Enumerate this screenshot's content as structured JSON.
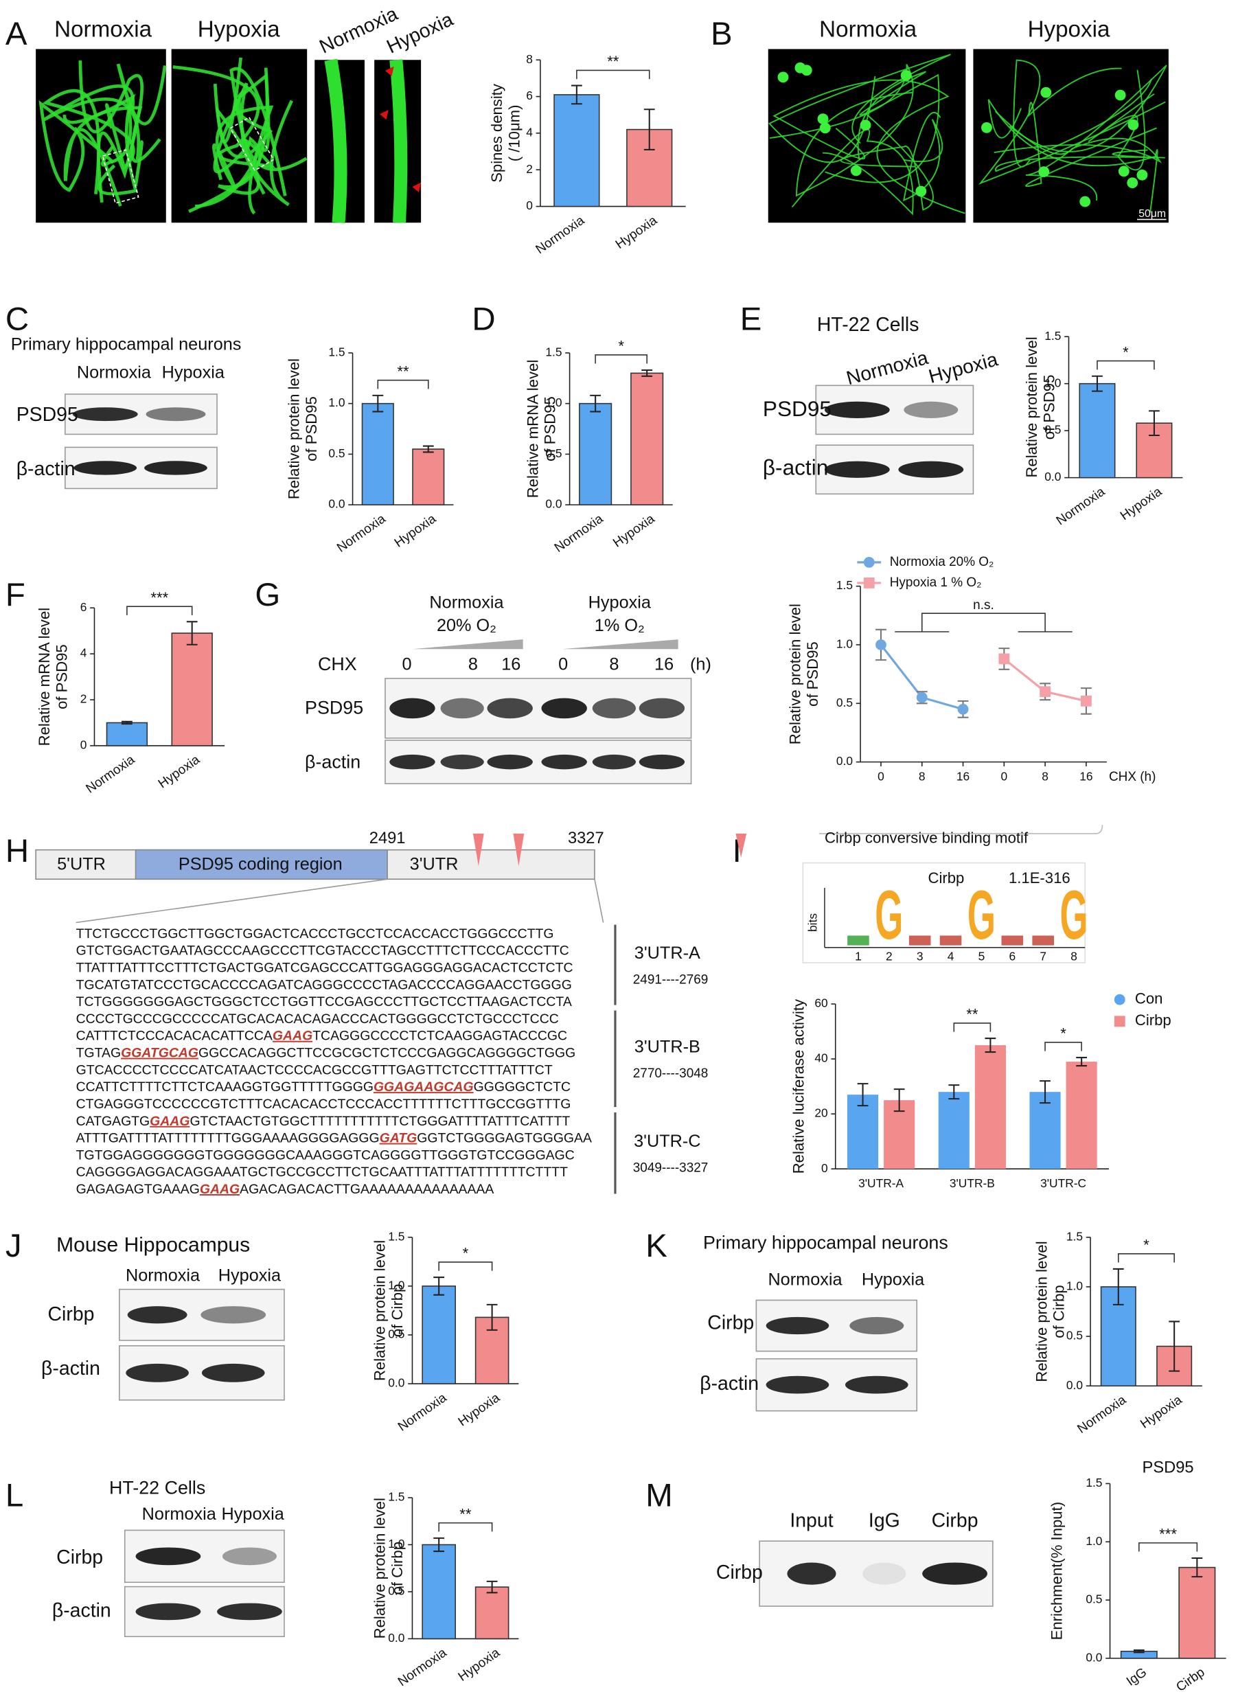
{
  "panel_letters": [
    "A",
    "B",
    "C",
    "D",
    "E",
    "F",
    "G",
    "H",
    "I",
    "J",
    "K",
    "L",
    "M"
  ],
  "figure": {
    "A": {
      "image_labels": [
        "Normoxia",
        "Hypoxia"
      ],
      "zoom_labels": [
        "Normoxia",
        "Hypoxia"
      ]
    },
    "B": {
      "image_labels": [
        "Normoxia",
        "Hypoxia"
      ],
      "scale_bar": "50μm"
    },
    "C": {
      "heading": "Primary hippocampal neurons",
      "lanes": [
        "Normoxia",
        "Hypoxia"
      ],
      "rows": [
        "PSD95",
        "β-actin"
      ]
    },
    "E": {
      "heading": "HT-22 Cells",
      "lanes": [
        "Normoxia",
        "Hypoxia"
      ],
      "rows": [
        "PSD95",
        "β-actin"
      ]
    },
    "G": {
      "conditions": [
        "Normoxia",
        "Hypoxia"
      ],
      "oxygen": [
        "20% O₂",
        "1% O₂"
      ],
      "treatment": "CHX",
      "times": [
        "0",
        "8",
        "16",
        "0",
        "8",
        "16"
      ],
      "unit": "(h)",
      "rows": [
        "PSD95",
        "β-actin"
      ]
    },
    "H": {
      "regions": [
        "5'UTR",
        "PSD95 coding region",
        "3'UTR"
      ],
      "positions": [
        "2491",
        "3327"
      ],
      "sequence": [
        [
          "TTCTGCCCTGGCTTGGCTGGACTCACCCTGCCTCCACCACCTGGGCCCTTG"
        ],
        [
          "GTCTGGACTGAATAGCCCAAGCCCTTCGTACCCTAGCCTTTCTTCCCACCCTTC"
        ],
        [
          "TTATTTATTTCCTTTCTGACTGGATCGAGCCCATTGGAGGGAGGACACTCCTCTC"
        ],
        [
          "TGCATGTATCCCTGCACCCCAGATCAGGGCCCCTAGACCCCAGGAACCTGGGG"
        ],
        [
          "TCTGGGGGGGAGCTGGGCTCCTGGTTCCGAGCCCTTGCTCCTTAAGACTCCTA"
        ],
        [
          "CCCCTGCCCGCCCCCATGCACACACAGACCCACTGGGGCCTCTGCCCTCCC"
        ],
        [
          "CATTTCTCCCACACACATTCCA",
          "GAAG",
          "TCAGGGCCCCTCTCAAGGAGTACCCGC"
        ],
        [
          "TGTAG",
          "GGATGCAG",
          "GGCCACAGGCTTCCGCGCTCTCCCGAGGCAGGGGCTGGG"
        ],
        [
          "GTCACCCCTCCCCATCATAACTCCCCACGCCGTTTGAGTTCTCCTTTATTTCT"
        ],
        [
          "CCATTCTTTTCTTCTCAAAGGTGGTTTTTGGGG",
          "GGAGAAGCAG",
          "GGGGGCTCTC"
        ],
        [
          "CTGAGGGTCCCCCCGTCTTTCACACACCTCCCACCTTTTTTCTTTGCCGGTTTG"
        ],
        [
          "CATGAGTG",
          "GAAG",
          "GTCTAACTGTGGCTTTTTTTTTTTCTGGGATTTTATTTCATTTT"
        ],
        [
          "ATTTGATTTTATTTTTTTTGGGAAAAGGGGAGGG",
          "GATG",
          "GGTCTGGGGAGTGGGGAA"
        ],
        [
          "TGTGGAGGGGGGGTGGGGGGGCAAAGGGTCAGGGGTTGGGTGTCCGGGAGC"
        ],
        [
          "CAGGGGAGGACAGGAAATGCTGCCGCCTTCTGCAATTTATTTATTTTTTTCTTTT"
        ],
        [
          "GAGAGAGTGAAAG",
          "GAAG",
          "AGACAGACACTTGAAAAAAAAAAAAAAA"
        ]
      ],
      "segments": [
        {
          "name": "3'UTR-A",
          "range": "2491----2769"
        },
        {
          "name": "3'UTR-B",
          "range": "2770----3048"
        },
        {
          "name": "3'UTR-C",
          "range": "3049----3327"
        }
      ]
    },
    "I": {
      "motif_title": "Cirbp conversive binding motif",
      "motif_name": "Cirbp",
      "motif_evalue": "1.1E-316",
      "motif_axis": "bits",
      "motif_positions": [
        "1",
        "2",
        "3",
        "4",
        "5",
        "6",
        "7",
        "8"
      ],
      "motif_letters": [
        "G",
        "G",
        "G"
      ]
    },
    "J": {
      "heading": "Mouse Hippocampus",
      "lanes": [
        "Normoxia",
        "Hypoxia"
      ],
      "rows": [
        "Cirbp",
        "β-actin"
      ]
    },
    "K": {
      "heading": "Primary hippocampal neurons",
      "lanes": [
        "Normoxia",
        "Hypoxia"
      ],
      "rows": [
        "Cirbp",
        "β-actin"
      ]
    },
    "L": {
      "heading": "HT-22 Cells",
      "lanes": [
        "Normoxia",
        "Hypoxia"
      ],
      "rows": [
        "Cirbp",
        "β-actin"
      ]
    },
    "M": {
      "lanes": [
        "Input",
        "IgG",
        "Cirbp"
      ],
      "rows": [
        "Cirbp"
      ]
    }
  },
  "chart_data": [
    {
      "type": "bar",
      "ylabel": [
        "Spines density",
        "( /10μm)"
      ],
      "categories": [
        "Normoxia",
        "Hypoxia"
      ],
      "values": [
        6.1,
        4.2
      ],
      "errors": [
        0.5,
        1.1
      ],
      "colors": [
        "#5aa5f0",
        "#f28b8b"
      ],
      "ylim": [
        0,
        8
      ],
      "yticks": [
        0,
        2,
        4,
        6,
        8
      ],
      "significance": "**"
    },
    {
      "type": "bar",
      "ylabel": [
        "Relative protein level",
        "of PSD95"
      ],
      "categories": [
        "Normoxia",
        "Hypoxia"
      ],
      "values": [
        1.0,
        0.55
      ],
      "errors": [
        0.08,
        0.03
      ],
      "colors": [
        "#5aa5f0",
        "#f28b8b"
      ],
      "ylim": [
        0,
        1.5
      ],
      "yticks": [
        {
          "value": 0,
          "label": "0.0"
        },
        0.5,
        {
          "value": 1,
          "label": "1.0"
        },
        1.5
      ],
      "significance": "**"
    },
    {
      "type": "bar",
      "ylabel": [
        "Relative mRNA level",
        "of PSD95"
      ],
      "categories": [
        "Normoxia",
        "Hypoxia"
      ],
      "values": [
        1.0,
        1.3
      ],
      "errors": [
        0.08,
        0.03
      ],
      "colors": [
        "#5aa5f0",
        "#f28b8b"
      ],
      "ylim": [
        0,
        1.5
      ],
      "yticks": [
        {
          "value": 0,
          "label": "0.0"
        },
        0.5,
        {
          "value": 1,
          "label": "1.0"
        },
        1.5
      ],
      "significance": "*"
    },
    {
      "type": "bar",
      "ylabel": [
        "Relative protein level",
        "of PSD95"
      ],
      "categories": [
        "Normoxia",
        "Hypoxia"
      ],
      "values": [
        1.0,
        0.58
      ],
      "errors": [
        0.08,
        0.13
      ],
      "colors": [
        "#5aa5f0",
        "#f28b8b"
      ],
      "ylim": [
        0,
        1.5
      ],
      "yticks": [
        {
          "value": 0,
          "label": "0.0"
        },
        0.5,
        {
          "value": 1,
          "label": "1.0"
        },
        1.5
      ],
      "significance": "*"
    },
    {
      "type": "bar",
      "ylabel": [
        "Relative mRNA level",
        "of PSD95"
      ],
      "categories": [
        "Normoxia",
        "Hypoxia"
      ],
      "values": [
        1.0,
        4.9
      ],
      "errors": [
        0.05,
        0.5
      ],
      "colors": [
        "#5aa5f0",
        "#f28b8b"
      ],
      "ylim": [
        0,
        6
      ],
      "yticks": [
        0,
        2,
        4,
        6
      ],
      "significance": "***"
    },
    {
      "type": "line",
      "ylabel": [
        "Relative protein level",
        "of PSD95"
      ],
      "xlabel": "CHX (h)",
      "categories": [
        "0",
        "8",
        "16",
        "0",
        "8",
        "16"
      ],
      "series": [
        {
          "name": "Normoxia 20% O₂",
          "color": "#6fa8e0",
          "marker": "circle",
          "values": [
            1.0,
            0.55,
            0.45,
            null,
            null,
            null
          ],
          "errors": [
            0.13,
            0.05,
            0.07,
            null,
            null,
            null
          ]
        },
        {
          "name": "Hypoxia    1 % O₂",
          "color": "#f4a0a6",
          "marker": "square",
          "values": [
            null,
            null,
            null,
            0.88,
            0.6,
            0.52
          ],
          "errors": [
            null,
            null,
            null,
            0.09,
            0.07,
            0.11
          ]
        }
      ],
      "ylim": [
        0,
        1.5
      ],
      "yticks": [
        {
          "value": 0,
          "label": "0.0"
        },
        0.5,
        {
          "value": 1,
          "label": "1.0"
        },
        1.5
      ],
      "significance": "n.s."
    },
    {
      "type": "grouped_bar",
      "ylabel": [
        "Relative luciferase activity"
      ],
      "categories": [
        "3'UTR-A",
        "3'UTR-B",
        "3'UTR-C"
      ],
      "series": [
        {
          "name": "Con",
          "color": "#5aa5f0",
          "marker": "circle",
          "values": [
            27,
            28,
            28
          ],
          "errors": [
            4,
            2.5,
            4
          ]
        },
        {
          "name": "Cirbp",
          "color": "#f28b8b",
          "marker": "square",
          "values": [
            25,
            45,
            39
          ],
          "errors": [
            4,
            2.5,
            1.5
          ]
        }
      ],
      "ylim": [
        0,
        60
      ],
      "yticks": [
        0,
        20,
        40,
        60
      ],
      "significance": [
        null,
        "**",
        "*"
      ]
    },
    {
      "type": "bar",
      "ylabel": [
        "Relative protein level",
        "of Cirbp"
      ],
      "categories": [
        "Normoxia",
        "Hypoxia"
      ],
      "values": [
        1.0,
        0.68
      ],
      "errors": [
        0.09,
        0.13
      ],
      "colors": [
        "#5aa5f0",
        "#f28b8b"
      ],
      "ylim": [
        0,
        1.5
      ],
      "yticks": [
        {
          "value": 0,
          "label": "0.0"
        },
        0.5,
        {
          "value": 1,
          "label": "1.0"
        },
        1.5
      ],
      "significance": "*"
    },
    {
      "type": "bar",
      "ylabel": [
        "Relative protein level",
        "of Cirbp"
      ],
      "categories": [
        "Normoxia",
        "Hypoxia"
      ],
      "values": [
        1.0,
        0.4
      ],
      "errors": [
        0.18,
        0.25
      ],
      "colors": [
        "#5aa5f0",
        "#f28b8b"
      ],
      "ylim": [
        0,
        1.5
      ],
      "yticks": [
        {
          "value": 0,
          "label": "0.0"
        },
        0.5,
        {
          "value": 1,
          "label": "1.0"
        },
        1.5
      ],
      "significance": "*"
    },
    {
      "type": "bar",
      "ylabel": [
        "Relative protein level",
        "of Cirbp"
      ],
      "categories": [
        "Normoxia",
        "Hypoxia"
      ],
      "values": [
        1.0,
        0.55
      ],
      "errors": [
        0.07,
        0.06
      ],
      "colors": [
        "#5aa5f0",
        "#f28b8b"
      ],
      "ylim": [
        0,
        1.5
      ],
      "yticks": [
        {
          "value": 0,
          "label": "0.0"
        },
        0.5,
        {
          "value": 1,
          "label": "1.0"
        },
        1.5
      ],
      "significance": "**"
    },
    {
      "type": "bar",
      "title": "PSD95",
      "ylabel": [
        "Enrichment(% Input)"
      ],
      "categories": [
        "IgG",
        "Cirbp"
      ],
      "values": [
        0.06,
        0.78
      ],
      "errors": [
        0.01,
        0.08
      ],
      "colors": [
        "#5aa5f0",
        "#f28b8b"
      ],
      "ylim": [
        0,
        1.5
      ],
      "yticks": [
        {
          "value": 0,
          "label": "0.0"
        },
        0.5,
        {
          "value": 1,
          "label": "1.0"
        },
        1.5
      ],
      "significance": "***"
    }
  ]
}
